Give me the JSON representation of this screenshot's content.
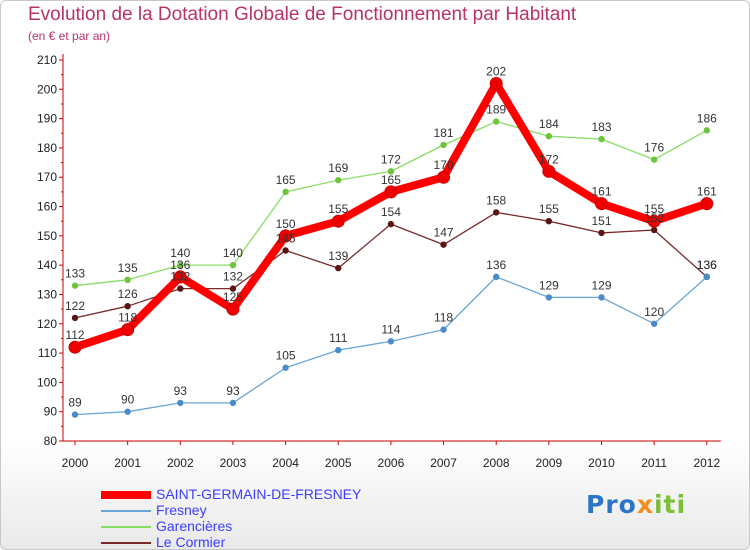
{
  "title": "Evolution de la Dotation Globale de Fonctionnement par Habitant",
  "subtitle": "(en € et par an)",
  "logo": {
    "part1": "Pro",
    "part2": "x",
    "part3": "iti"
  },
  "chart_data": {
    "type": "line",
    "x": [
      "2000",
      "2001",
      "2002",
      "2003",
      "2004",
      "2005",
      "2006",
      "2007",
      "2008",
      "2009",
      "2010",
      "2011",
      "2012"
    ],
    "ylim": [
      80,
      210
    ],
    "yticks": [
      80,
      90,
      100,
      110,
      120,
      130,
      140,
      150,
      160,
      170,
      180,
      190,
      200,
      210
    ],
    "grid": false,
    "legend_position": "bottom-left",
    "series": [
      {
        "name": "SAINT-GERMAIN-DE-FRESNEY",
        "values": [
          112,
          118,
          136,
          125,
          150,
          155,
          165,
          170,
          202,
          172,
          161,
          155,
          161
        ],
        "color": "#ff0000",
        "marker": "#ee0000"
      },
      {
        "name": "Fresney",
        "values": [
          89,
          90,
          93,
          93,
          105,
          111,
          114,
          118,
          136,
          129,
          129,
          120,
          136
        ],
        "color": "#6aa7d6",
        "marker": "#4a8cc7"
      },
      {
        "name": "Garencières",
        "values": [
          133,
          135,
          140,
          140,
          165,
          169,
          172,
          181,
          189,
          184,
          183,
          176,
          186
        ],
        "color": "#88dd66",
        "marker": "#6ec43c"
      },
      {
        "name": "Le Cormier",
        "values": [
          122,
          126,
          132,
          132,
          145,
          139,
          154,
          147,
          158,
          155,
          151,
          152,
          136
        ],
        "color": "#7a2a2a",
        "marker": "#5a1414"
      }
    ]
  }
}
